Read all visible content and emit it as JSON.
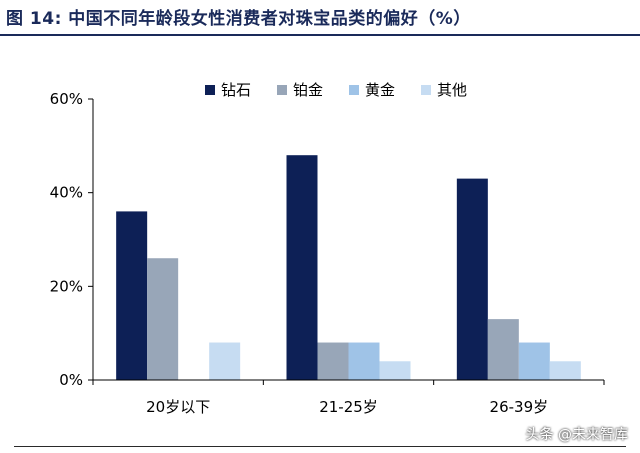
{
  "title": "图 14: 中国不同年龄段女性消费者对珠宝品类的偏好（%）",
  "watermark": "头条 @未来智库",
  "chart_data": {
    "type": "bar",
    "categories": [
      "20岁以下",
      "21-25岁",
      "26-39岁"
    ],
    "series": [
      {
        "name": "钻石",
        "color": "#0d2056",
        "values": [
          36,
          48,
          43
        ]
      },
      {
        "name": "铂金",
        "color": "#98a6b8",
        "values": [
          26,
          8,
          13
        ]
      },
      {
        "name": "黄金",
        "color": "#9fc3e7",
        "values": [
          0,
          8,
          8
        ]
      },
      {
        "name": "其他",
        "color": "#c6dcf2",
        "values": [
          8,
          4,
          4
        ]
      }
    ],
    "ylim": [
      0,
      60
    ],
    "yticks": [
      "0%",
      "20%",
      "40%",
      "60%"
    ],
    "ytick_values": [
      0,
      20,
      40,
      60
    ],
    "legend_position": "top",
    "grid": false
  }
}
